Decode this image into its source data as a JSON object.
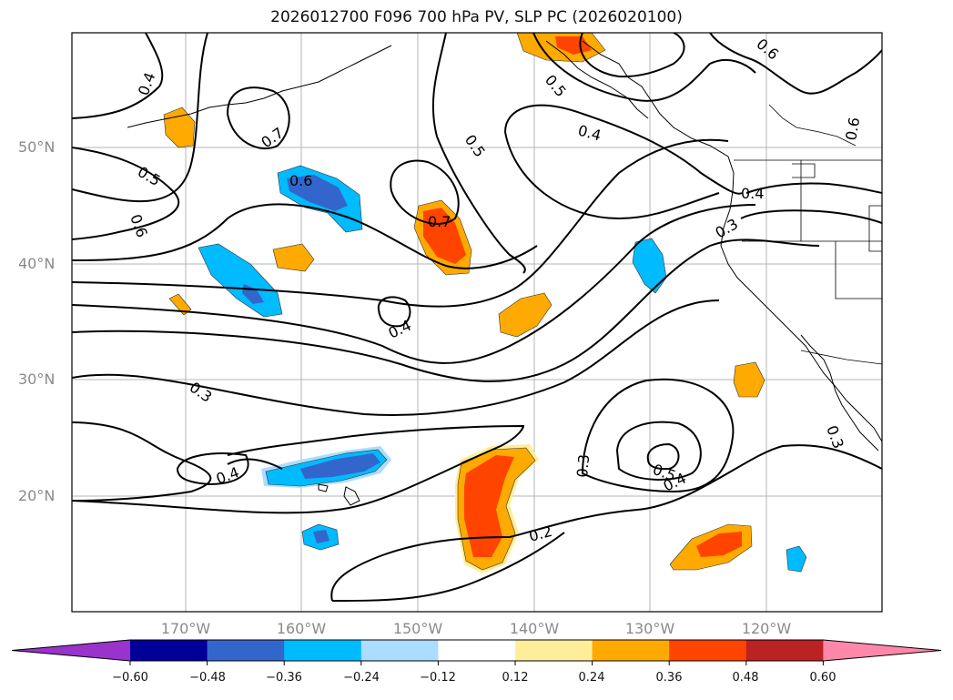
{
  "title": "2026012700 F096 700 hPa PV, SLP PC (2026020100)",
  "lat_labels": [
    "50°N",
    "40°N",
    "30°N",
    "20°N"
  ],
  "lon_labels": [
    "170°W",
    "160°W",
    "150°W",
    "140°W",
    "130°W",
    "120°W"
  ],
  "contour_labels": [
    "0.4",
    "0.7",
    "0.5",
    "0.6",
    "0.6",
    "0.7",
    "0.5",
    "0.4",
    "0.5",
    "0.6",
    "0.6",
    "0.4",
    "0.3",
    "0.4",
    "0.3",
    "0.4",
    "0.3",
    "0.5",
    "0.4",
    "0.2",
    "0.3"
  ],
  "colorbar": {
    "colors": [
      "#9933cc",
      "#000099",
      "#3366cc",
      "#00bbff",
      "#aaddff",
      "#ffffff",
      "#ffee99",
      "#ffaa00",
      "#ff4400",
      "#bb2222",
      "#ff88aa"
    ],
    "labels": [
      "−0.60",
      "−0.48",
      "−0.36",
      "−0.24",
      "−0.12",
      "0.12",
      "0.24",
      "0.36",
      "0.48",
      "0.60"
    ]
  }
}
